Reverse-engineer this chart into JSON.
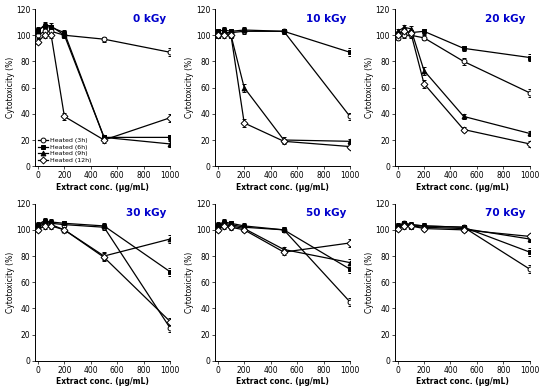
{
  "x": [
    0,
    50,
    100,
    200,
    500,
    1000
  ],
  "panels": [
    {
      "label": "0 kGy",
      "series": [
        {
          "name": "Heated (3h)",
          "marker": "o",
          "filled": false,
          "y": [
            100,
            103,
            103,
            100,
            97,
            87
          ],
          "yerr": [
            2,
            2,
            2,
            2,
            2,
            3
          ]
        },
        {
          "name": "Heated (6h)",
          "marker": "s",
          "filled": true,
          "y": [
            104,
            107,
            106,
            102,
            22,
            22
          ],
          "yerr": [
            2,
            2,
            2,
            2,
            2,
            2
          ]
        },
        {
          "name": "Heated (9h)",
          "marker": "^",
          "filled": true,
          "y": [
            103,
            108,
            107,
            100,
            22,
            17
          ],
          "yerr": [
            2,
            2,
            2,
            2,
            2,
            2
          ]
        },
        {
          "name": "Heated (12h)",
          "marker": "D",
          "filled": false,
          "y": [
            95,
            100,
            100,
            38,
            20,
            37
          ],
          "yerr": [
            2,
            2,
            2,
            3,
            2,
            3
          ]
        }
      ]
    },
    {
      "label": "10 kGy",
      "series": [
        {
          "name": "Heated (3h)",
          "marker": "o",
          "filled": false,
          "y": [
            100,
            102,
            102,
            103,
            103,
            38
          ],
          "yerr": [
            2,
            2,
            2,
            2,
            2,
            3
          ]
        },
        {
          "name": "Heated (6h)",
          "marker": "s",
          "filled": true,
          "y": [
            103,
            104,
            103,
            104,
            103,
            87
          ],
          "yerr": [
            2,
            2,
            2,
            2,
            2,
            3
          ]
        },
        {
          "name": "Heated (9h)",
          "marker": "^",
          "filled": true,
          "y": [
            100,
            102,
            100,
            60,
            20,
            19
          ],
          "yerr": [
            2,
            2,
            2,
            3,
            2,
            2
          ]
        },
        {
          "name": "Heated (12h)",
          "marker": "D",
          "filled": false,
          "y": [
            100,
            100,
            100,
            33,
            19,
            15
          ],
          "yerr": [
            2,
            2,
            2,
            3,
            2,
            2
          ]
        }
      ]
    },
    {
      "label": "20 kGy",
      "series": [
        {
          "name": "Heated (3h)",
          "marker": "o",
          "filled": false,
          "y": [
            98,
            100,
            100,
            98,
            80,
            56
          ],
          "yerr": [
            2,
            2,
            2,
            2,
            3,
            3
          ]
        },
        {
          "name": "Heated (6h)",
          "marker": "s",
          "filled": true,
          "y": [
            101,
            103,
            102,
            103,
            90,
            83
          ],
          "yerr": [
            2,
            2,
            2,
            2,
            2,
            3
          ]
        },
        {
          "name": "Heated (9h)",
          "marker": "^",
          "filled": true,
          "y": [
            103,
            106,
            105,
            73,
            38,
            25
          ],
          "yerr": [
            2,
            2,
            2,
            3,
            2,
            2
          ]
        },
        {
          "name": "Heated (12h)",
          "marker": "D",
          "filled": false,
          "y": [
            100,
            103,
            102,
            63,
            28,
            17
          ],
          "yerr": [
            2,
            2,
            2,
            3,
            2,
            2
          ]
        }
      ]
    },
    {
      "label": "30 kGy",
      "series": [
        {
          "name": "Heated (3h)",
          "marker": "o",
          "filled": false,
          "y": [
            103,
            106,
            105,
            104,
            102,
            25
          ],
          "yerr": [
            2,
            2,
            2,
            2,
            2,
            3
          ]
        },
        {
          "name": "Heated (6h)",
          "marker": "s",
          "filled": true,
          "y": [
            104,
            107,
            106,
            105,
            103,
            68
          ],
          "yerr": [
            2,
            2,
            2,
            2,
            2,
            3
          ]
        },
        {
          "name": "Heated (9h)",
          "marker": "^",
          "filled": true,
          "y": [
            102,
            105,
            104,
            100,
            80,
            93
          ],
          "yerr": [
            2,
            2,
            2,
            2,
            3,
            3
          ]
        },
        {
          "name": "Heated (12h)",
          "marker": "D",
          "filled": false,
          "y": [
            100,
            103,
            103,
            100,
            79,
            30
          ],
          "yerr": [
            2,
            2,
            2,
            2,
            3,
            3
          ]
        }
      ]
    },
    {
      "label": "50 kGy",
      "series": [
        {
          "name": "Heated (3h)",
          "marker": "o",
          "filled": false,
          "y": [
            103,
            105,
            104,
            102,
            100,
            45
          ],
          "yerr": [
            2,
            2,
            2,
            2,
            2,
            3
          ]
        },
        {
          "name": "Heated (6h)",
          "marker": "s",
          "filled": true,
          "y": [
            104,
            106,
            105,
            103,
            100,
            70
          ],
          "yerr": [
            2,
            2,
            2,
            2,
            2,
            3
          ]
        },
        {
          "name": "Heated (9h)",
          "marker": "^",
          "filled": true,
          "y": [
            102,
            104,
            103,
            101,
            85,
            75
          ],
          "yerr": [
            2,
            2,
            2,
            2,
            2,
            3
          ]
        },
        {
          "name": "Heated (12h)",
          "marker": "D",
          "filled": false,
          "y": [
            100,
            103,
            102,
            100,
            83,
            90
          ],
          "yerr": [
            2,
            2,
            2,
            2,
            2,
            3
          ]
        }
      ]
    },
    {
      "label": "70 kGy",
      "series": [
        {
          "name": "Heated (3h)",
          "marker": "o",
          "filled": false,
          "y": [
            103,
            105,
            104,
            103,
            102,
            70
          ],
          "yerr": [
            2,
            2,
            2,
            2,
            2,
            3
          ]
        },
        {
          "name": "Heated (6h)",
          "marker": "s",
          "filled": true,
          "y": [
            103,
            105,
            104,
            103,
            102,
            83
          ],
          "yerr": [
            2,
            2,
            2,
            2,
            2,
            3
          ]
        },
        {
          "name": "Heated (9h)",
          "marker": "^",
          "filled": true,
          "y": [
            102,
            104,
            103,
            102,
            101,
            93
          ],
          "yerr": [
            2,
            2,
            2,
            2,
            2,
            2
          ]
        },
        {
          "name": "Heated (12h)",
          "marker": "D",
          "filled": false,
          "y": [
            101,
            103,
            103,
            101,
            100,
            95
          ],
          "yerr": [
            2,
            2,
            2,
            2,
            2,
            2
          ]
        }
      ]
    }
  ],
  "xlabel": "Extract conc. (μg/mL)",
  "ylabel": "Cytotoxicity (%)",
  "ylim": [
    0,
    120
  ],
  "xlim": [
    -20,
    1000
  ],
  "yticks": [
    0,
    20,
    40,
    60,
    80,
    100,
    120
  ],
  "xticks": [
    0,
    200,
    400,
    600,
    800,
    1000
  ],
  "label_color": "#0000cc",
  "line_color": "black",
  "marker_size": 3.5,
  "linewidth": 0.9,
  "capsize": 1.5,
  "elinewidth": 0.6,
  "legend_panel": 0
}
